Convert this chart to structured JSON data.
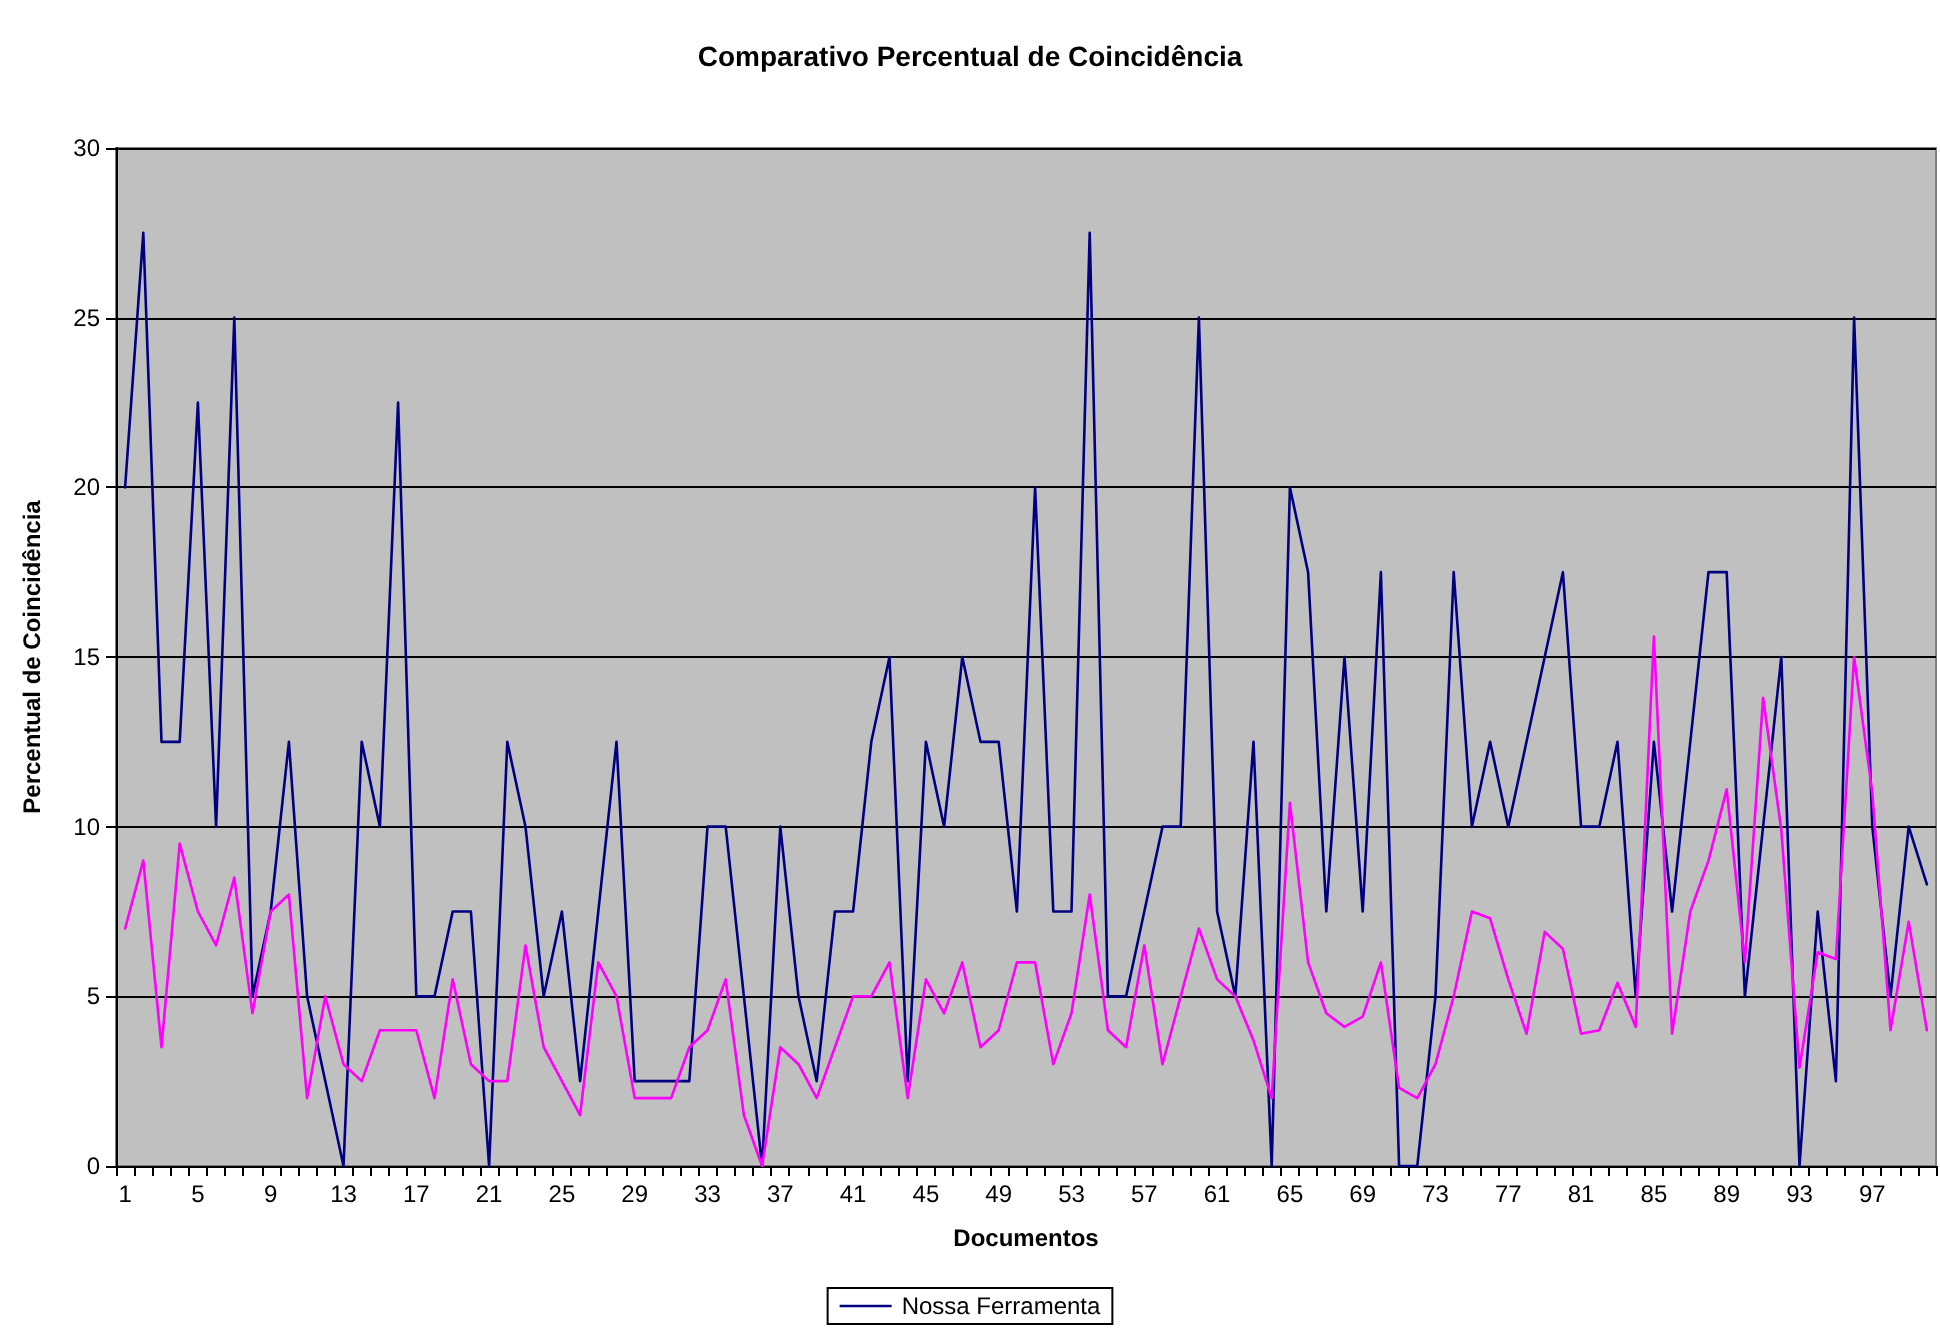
{
  "chart_data": {
    "type": "line",
    "title": "Comparativo Percentual de Coincidência",
    "xlabel": "Documentos",
    "ylabel": "Percentual de Coincidência",
    "categories": [
      "1",
      null,
      null,
      null,
      "5",
      null,
      null,
      null,
      "9",
      null,
      null,
      null,
      "13",
      null,
      null,
      null,
      "17",
      null,
      null,
      null,
      "21",
      null,
      null,
      null,
      "25",
      null,
      null,
      null,
      "29",
      null,
      null,
      null,
      "33",
      null,
      null,
      null,
      "37",
      null,
      null,
      null,
      "41",
      null,
      null,
      null,
      "45",
      null,
      null,
      null,
      "49",
      null,
      null,
      null,
      "53",
      null,
      null,
      null,
      "57",
      null,
      null,
      null,
      "61",
      null,
      null,
      null,
      "65",
      null,
      null,
      null,
      "69",
      null,
      null,
      null,
      "73",
      null,
      null,
      null,
      "77",
      null,
      null,
      null,
      "81",
      null,
      null,
      null,
      "85",
      null,
      null,
      null,
      "89",
      null,
      null,
      null,
      "93",
      null,
      null,
      null,
      "97",
      null,
      null,
      null
    ],
    "series": [
      {
        "name": "Nossa Ferramenta",
        "color": "#000080",
        "values": [
          20,
          27.5,
          12.5,
          12.5,
          22.5,
          10,
          25,
          5,
          7.5,
          12.5,
          5,
          2.5,
          0,
          12.5,
          10,
          22.5,
          5,
          5,
          7.5,
          7.5,
          0,
          12.5,
          10,
          5,
          7.5,
          2.5,
          7.5,
          12.5,
          2.5,
          2.5,
          2.5,
          2.5,
          10,
          10,
          5,
          0,
          10,
          5,
          2.5,
          7.5,
          7.5,
          12.5,
          15,
          2.5,
          12.5,
          10,
          15,
          12.5,
          12.5,
          7.5,
          20,
          7.5,
          7.5,
          27.5,
          5,
          5,
          7.5,
          10,
          10,
          25,
          7.5,
          5,
          12.5,
          0,
          20,
          17.5,
          7.5,
          15,
          7.5,
          17.5,
          0,
          0,
          5,
          17.5,
          10,
          12.5,
          10,
          12.5,
          15,
          17.5,
          10,
          10,
          12.5,
          5,
          12.5,
          7.5,
          12.5,
          17.5,
          17.5,
          5,
          10,
          15,
          0,
          7.5,
          2.5,
          25,
          10,
          5,
          10,
          8.3
        ]
      },
      {
        "color": "#ff00ff",
        "values": [
          7,
          9,
          3.5,
          9.5,
          7.5,
          6.5,
          8.5,
          4.5,
          7.5,
          8,
          2,
          5,
          3,
          2.5,
          4,
          4,
          4,
          2,
          5.5,
          3,
          2.5,
          2.5,
          6.5,
          3.5,
          2.5,
          1.5,
          6,
          5,
          2,
          2,
          2,
          3.5,
          4,
          5.5,
          1.5,
          0,
          3.5,
          3,
          2,
          3.5,
          5,
          5,
          6,
          2,
          5.5,
          4.5,
          6,
          3.5,
          4,
          6,
          6,
          3,
          4.5,
          8,
          4,
          3.5,
          6.5,
          3,
          5,
          7,
          5.5,
          5,
          3.7,
          2,
          10.7,
          6,
          4.5,
          4.1,
          4.4,
          6,
          2.3,
          2,
          3,
          5,
          7.5,
          7.3,
          5.5,
          3.9,
          6.9,
          6.4,
          3.9,
          4,
          5.4,
          4.1,
          15.6,
          3.9,
          7.5,
          9,
          11.1,
          6,
          13.8,
          9.9,
          2.9,
          6.3,
          6.1,
          15,
          11,
          4,
          7.2,
          4
        ]
      }
    ],
    "ylim": [
      0,
      30
    ],
    "yticks": [
      0,
      5,
      10,
      15,
      20,
      25,
      30
    ],
    "grid": "y",
    "legend": "bottom",
    "marker": "none",
    "line_style": "solid"
  }
}
